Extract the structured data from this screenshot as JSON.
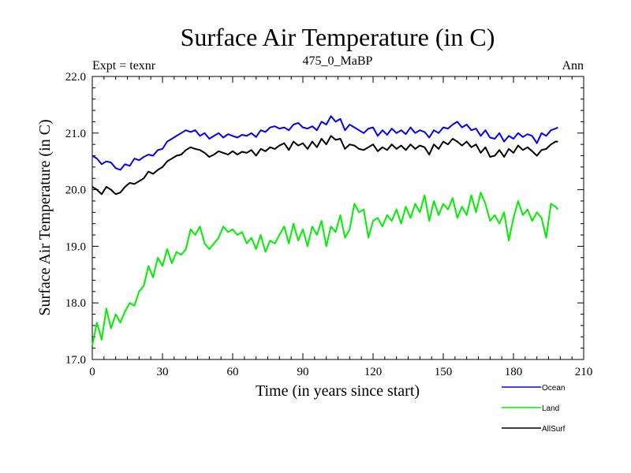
{
  "chart_data": {
    "type": "line",
    "title": "Surface Air Temperature (in C)",
    "subtitle_left": "Expt = texnr",
    "subtitle_center": "475_0_MaBP",
    "subtitle_right": "Ann",
    "xlabel": "Time (in years since start)",
    "ylabel": "Surface Air Temperature (in C)",
    "xlim": [
      0,
      210
    ],
    "ylim": [
      17.0,
      22.0
    ],
    "xticks": [
      0,
      30,
      60,
      90,
      120,
      150,
      180,
      210
    ],
    "xtick_labels": [
      "0",
      "30",
      "60",
      "90",
      "120",
      "150",
      "180",
      "210"
    ],
    "yticks": [
      17.0,
      18.0,
      19.0,
      20.0,
      21.0,
      22.0
    ],
    "ytick_labels": [
      "17.0",
      "18.0",
      "19.0",
      "20.0",
      "21.0",
      "22.0"
    ],
    "legend_position": "bottom-right",
    "series": [
      {
        "name": "Ocean",
        "color": "#0000ff",
        "x": [
          0,
          2,
          4,
          6,
          8,
          10,
          12,
          14,
          16,
          18,
          20,
          22,
          24,
          26,
          28,
          30,
          32,
          34,
          36,
          38,
          40,
          42,
          44,
          46,
          48,
          50,
          52,
          54,
          56,
          58,
          60,
          62,
          64,
          66,
          68,
          70,
          72,
          74,
          76,
          78,
          80,
          82,
          84,
          86,
          88,
          90,
          92,
          94,
          96,
          98,
          100,
          102,
          104,
          106,
          108,
          110,
          112,
          114,
          116,
          118,
          120,
          122,
          124,
          126,
          128,
          130,
          132,
          134,
          136,
          138,
          140,
          142,
          144,
          146,
          148,
          150,
          152,
          154,
          156,
          158,
          160,
          162,
          164,
          166,
          168,
          170,
          172,
          174,
          176,
          178,
          180,
          182,
          184,
          186,
          188,
          190,
          192,
          194,
          196,
          198,
          199
        ],
        "values": [
          20.6,
          20.55,
          20.45,
          20.5,
          20.48,
          20.38,
          20.35,
          20.45,
          20.42,
          20.55,
          20.52,
          20.58,
          20.62,
          20.6,
          20.7,
          20.72,
          20.85,
          20.9,
          20.95,
          21.0,
          21.05,
          21.02,
          21.05,
          20.95,
          21.0,
          20.9,
          20.95,
          21.0,
          20.92,
          20.98,
          20.95,
          20.92,
          20.97,
          20.95,
          21.0,
          20.93,
          21.05,
          21.02,
          21.1,
          21.12,
          21.08,
          21.1,
          21.05,
          21.15,
          21.18,
          21.1,
          21.08,
          21.12,
          21.05,
          21.2,
          21.15,
          21.3,
          21.2,
          21.25,
          21.05,
          21.15,
          21.1,
          21.05,
          21.0,
          21.08,
          21.1,
          20.95,
          21.05,
          20.97,
          21.08,
          21.0,
          21.05,
          20.98,
          21.1,
          21.0,
          21.05,
          21.02,
          20.92,
          21.05,
          21.0,
          21.1,
          21.08,
          21.15,
          21.2,
          21.1,
          21.15,
          21.05,
          21.08,
          20.95,
          21.05,
          20.92,
          20.9,
          21.0,
          20.85,
          20.95,
          20.9,
          21.0,
          20.93,
          20.98,
          20.95,
          20.82,
          21.0,
          20.95,
          21.05,
          21.08,
          21.1
        ]
      },
      {
        "name": "Land",
        "color": "#00ee00",
        "x": [
          0,
          2,
          4,
          6,
          8,
          10,
          12,
          14,
          16,
          18,
          20,
          22,
          24,
          26,
          28,
          30,
          32,
          34,
          36,
          38,
          40,
          42,
          44,
          46,
          48,
          50,
          52,
          54,
          56,
          58,
          60,
          62,
          64,
          66,
          68,
          70,
          72,
          74,
          76,
          78,
          80,
          82,
          84,
          86,
          88,
          90,
          92,
          94,
          96,
          98,
          100,
          102,
          104,
          106,
          108,
          110,
          112,
          114,
          116,
          118,
          120,
          122,
          124,
          126,
          128,
          130,
          132,
          134,
          136,
          138,
          140,
          142,
          144,
          146,
          148,
          150,
          152,
          154,
          156,
          158,
          160,
          162,
          164,
          166,
          168,
          170,
          172,
          174,
          176,
          178,
          180,
          182,
          184,
          186,
          188,
          190,
          192,
          194,
          196,
          198,
          199
        ],
        "values": [
          17.25,
          17.65,
          17.35,
          17.9,
          17.55,
          17.8,
          17.65,
          17.85,
          18.0,
          17.95,
          18.2,
          18.3,
          18.65,
          18.45,
          18.8,
          18.65,
          18.95,
          18.7,
          18.9,
          18.85,
          18.95,
          19.3,
          19.2,
          19.35,
          19.05,
          18.95,
          19.05,
          19.15,
          19.35,
          19.25,
          19.3,
          19.2,
          19.25,
          19.05,
          19.15,
          18.95,
          19.2,
          18.9,
          19.1,
          19.05,
          19.2,
          19.35,
          19.05,
          19.4,
          19.1,
          19.3,
          19.0,
          19.35,
          19.2,
          19.45,
          19.0,
          19.35,
          19.25,
          19.55,
          19.15,
          19.3,
          19.75,
          19.6,
          19.65,
          19.15,
          19.45,
          19.5,
          19.35,
          19.55,
          19.45,
          19.65,
          19.4,
          19.7,
          19.5,
          19.75,
          19.6,
          19.9,
          19.45,
          19.8,
          19.55,
          19.75,
          19.65,
          19.85,
          19.5,
          19.7,
          19.55,
          19.9,
          19.6,
          19.95,
          19.75,
          19.45,
          19.55,
          19.4,
          19.6,
          19.1,
          19.5,
          19.8,
          19.55,
          19.65,
          19.45,
          19.6,
          19.5,
          19.15,
          19.75,
          19.7,
          19.65
        ]
      },
      {
        "name": "AllSurf",
        "color": "#000000",
        "x": [
          0,
          2,
          4,
          6,
          8,
          10,
          12,
          14,
          16,
          18,
          20,
          22,
          24,
          26,
          28,
          30,
          32,
          34,
          36,
          38,
          40,
          42,
          44,
          46,
          48,
          50,
          52,
          54,
          56,
          58,
          60,
          62,
          64,
          66,
          68,
          70,
          72,
          74,
          76,
          78,
          80,
          82,
          84,
          86,
          88,
          90,
          92,
          94,
          96,
          98,
          100,
          102,
          104,
          106,
          108,
          110,
          112,
          114,
          116,
          118,
          120,
          122,
          124,
          126,
          128,
          130,
          132,
          134,
          136,
          138,
          140,
          142,
          144,
          146,
          148,
          150,
          152,
          154,
          156,
          158,
          160,
          162,
          164,
          166,
          168,
          170,
          172,
          174,
          176,
          178,
          180,
          182,
          184,
          186,
          188,
          190,
          192,
          194,
          196,
          198,
          199
        ],
        "values": [
          20.05,
          20.0,
          19.92,
          20.05,
          20.0,
          19.92,
          19.95,
          20.05,
          20.12,
          20.1,
          20.15,
          20.2,
          20.32,
          20.28,
          20.35,
          20.4,
          20.5,
          20.55,
          20.6,
          20.62,
          20.7,
          20.75,
          20.72,
          20.7,
          20.65,
          20.58,
          20.62,
          20.68,
          20.65,
          20.62,
          20.68,
          20.62,
          20.67,
          20.65,
          20.7,
          20.6,
          20.72,
          20.68,
          20.75,
          20.72,
          20.78,
          20.82,
          20.7,
          20.85,
          20.78,
          20.82,
          20.72,
          20.85,
          20.75,
          20.9,
          20.8,
          20.95,
          20.88,
          20.9,
          20.72,
          20.8,
          20.78,
          20.72,
          20.7,
          20.75,
          20.8,
          20.68,
          20.75,
          20.7,
          20.8,
          20.72,
          20.78,
          20.7,
          20.8,
          20.72,
          20.78,
          20.75,
          20.62,
          20.8,
          20.72,
          20.85,
          20.8,
          20.9,
          20.85,
          20.78,
          20.85,
          20.75,
          20.8,
          20.65,
          20.75,
          20.58,
          20.6,
          20.7,
          20.58,
          20.72,
          20.65,
          20.78,
          20.7,
          20.75,
          20.68,
          20.6,
          20.7,
          20.72,
          20.8,
          20.85,
          20.85
        ]
      }
    ]
  }
}
